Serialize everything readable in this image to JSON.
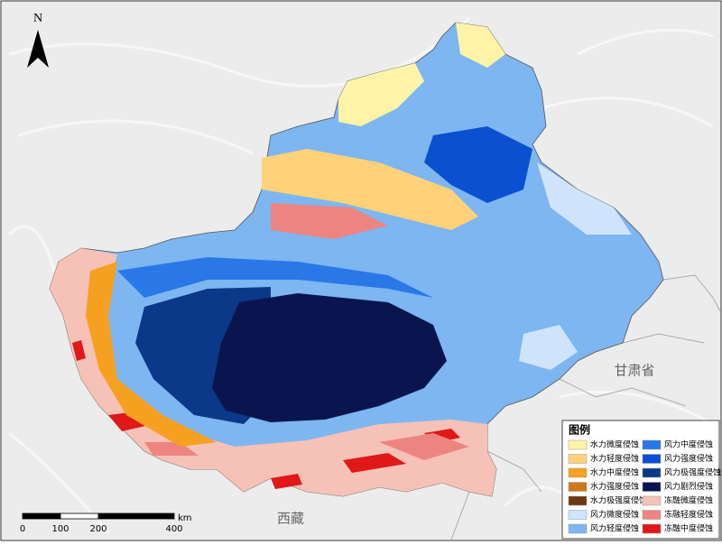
{
  "map": {
    "north": "N",
    "labels": {
      "gansu": "甘肃省",
      "xizang": "西藏"
    },
    "legend": {
      "title": "图例",
      "items": [
        {
          "label": "水力微度侵蚀",
          "color": "#fff3a8"
        },
        {
          "label": "水力轻度侵蚀",
          "color": "#ffd27a"
        },
        {
          "label": "水力中度侵蚀",
          "color": "#f5a020"
        },
        {
          "label": "水力强度侵蚀",
          "color": "#d07818"
        },
        {
          "label": "水力极强度侵蚀",
          "color": "#6b3810"
        },
        {
          "label": "风力微度侵蚀",
          "color": "#cfe4fa"
        },
        {
          "label": "风力轻度侵蚀",
          "color": "#7db6f0"
        },
        {
          "label": "风力中度侵蚀",
          "color": "#2a78e8"
        },
        {
          "label": "风力强度侵蚀",
          "color": "#0b50d0"
        },
        {
          "label": "风力极强度侵蚀",
          "color": "#0b3888"
        },
        {
          "label": "风力剧烈侵蚀",
          "color": "#0a1550"
        },
        {
          "label": "冻融微度侵蚀",
          "color": "#f6c2b8"
        },
        {
          "label": "冻融轻度侵蚀",
          "color": "#ee8480"
        },
        {
          "label": "冻融中度侵蚀",
          "color": "#e01818"
        }
      ]
    },
    "scale_bar": {
      "ticks": [
        0,
        100,
        200,
        400
      ],
      "unit": "km"
    }
  }
}
